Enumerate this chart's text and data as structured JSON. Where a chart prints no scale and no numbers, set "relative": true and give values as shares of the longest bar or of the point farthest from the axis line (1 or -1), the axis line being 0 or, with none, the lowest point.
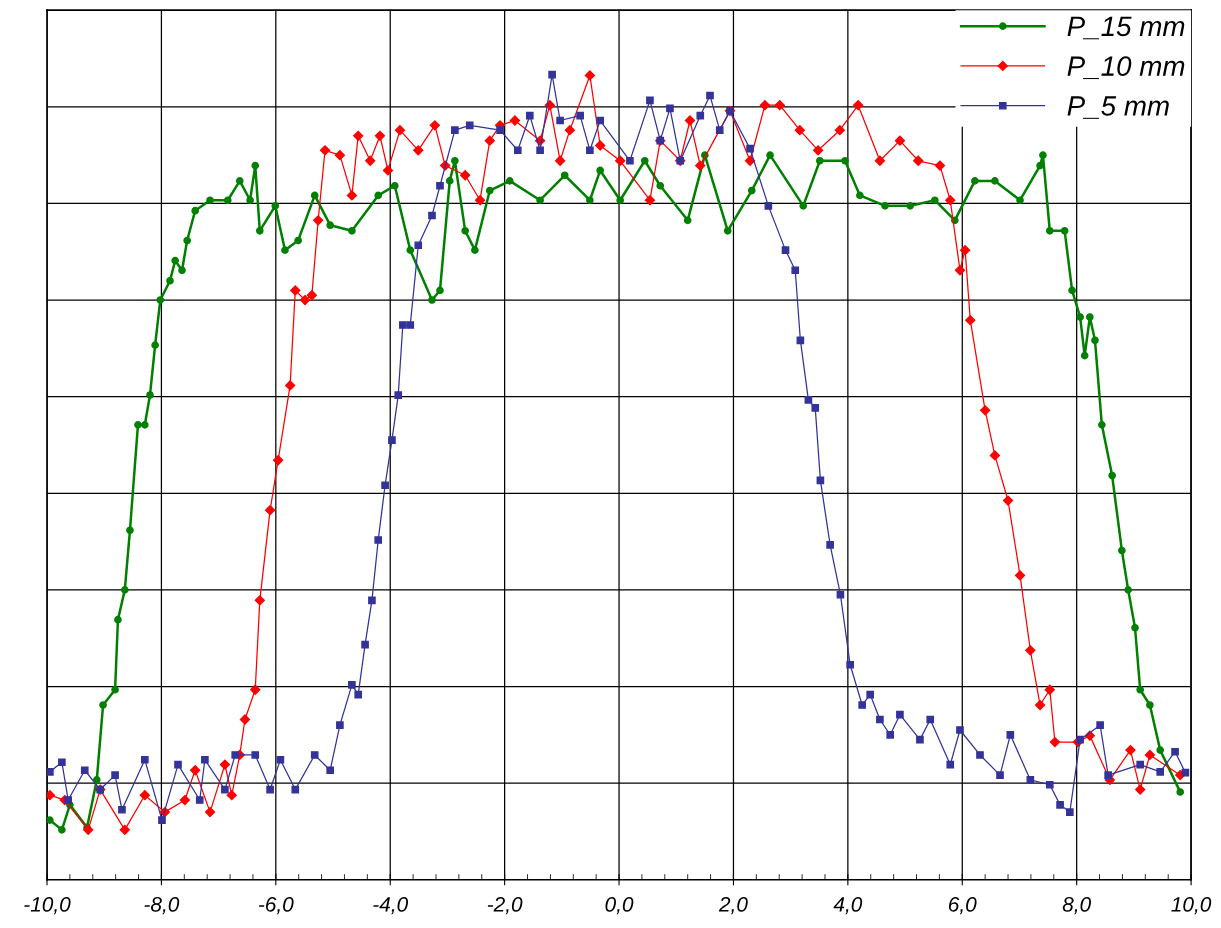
{
  "chart_data": {
    "type": "line",
    "relative": true,
    "xlim": [
      -10,
      10
    ],
    "xticks": [
      {
        "value": -10,
        "label": "-10,0"
      },
      {
        "value": -8,
        "label": "-8,0"
      },
      {
        "value": -6,
        "label": "-6,0"
      },
      {
        "value": -4,
        "label": "-4,0"
      },
      {
        "value": -2,
        "label": "-2,0"
      },
      {
        "value": 0,
        "label": "0,0"
      },
      {
        "value": 2,
        "label": "2,0"
      },
      {
        "value": 4,
        "label": "4,0"
      },
      {
        "value": 6,
        "label": "6,0"
      },
      {
        "value": 8,
        "label": "8,0"
      },
      {
        "value": 10,
        "label": "10,0"
      }
    ],
    "tick_labels": "x",
    "grid": true,
    "legend": "top right",
    "line_style": "solid",
    "series": [
      {
        "name": "P_15 mm",
        "color": "#008000",
        "marker": "circle",
        "x": [
          -9.95,
          -9.74,
          -9.6,
          -9.3,
          -9.13,
          -9.02,
          -8.81,
          -8.76,
          -8.64,
          -8.55,
          -8.41,
          -8.29,
          -8.2,
          -8.11,
          -8.02,
          -7.85,
          -7.76,
          -7.64,
          -7.55,
          -7.41,
          -7.15,
          -6.84,
          -6.63,
          -6.45,
          -6.36,
          -6.28,
          -6.01,
          -5.84,
          -5.61,
          -5.32,
          -5.05,
          -4.67,
          -4.21,
          -3.92,
          -3.65,
          -3.27,
          -3.13,
          -2.96,
          -2.87,
          -2.69,
          -2.52,
          -2.26,
          -1.91,
          -1.38,
          -0.95,
          -0.51,
          -0.33,
          0.02,
          0.45,
          0.72,
          1.2,
          1.5,
          1.9,
          2.32,
          2.64,
          3.22,
          3.51,
          3.95,
          4.21,
          4.65,
          5.09,
          5.52,
          5.87,
          6.22,
          6.57,
          7.01,
          7.36,
          7.41,
          7.53,
          7.79,
          7.92,
          8.06,
          8.14,
          8.23,
          8.32,
          8.44,
          8.62,
          8.79,
          8.9,
          9.02,
          9.11,
          9.28,
          9.46,
          9.81
        ],
        "values": [
          0.074,
          0.062,
          0.093,
          0.065,
          0.124,
          0.217,
          0.236,
          0.323,
          0.36,
          0.434,
          0.565,
          0.565,
          0.602,
          0.664,
          0.72,
          0.744,
          0.769,
          0.757,
          0.794,
          0.831,
          0.844,
          0.844,
          0.868,
          0.844,
          0.887,
          0.806,
          0.837,
          0.782,
          0.794,
          0.85,
          0.813,
          0.806,
          0.85,
          0.862,
          0.782,
          0.72,
          0.732,
          0.868,
          0.893,
          0.806,
          0.782,
          0.856,
          0.868,
          0.844,
          0.875,
          0.844,
          0.881,
          0.844,
          0.893,
          0.862,
          0.819,
          0.9,
          0.806,
          0.856,
          0.9,
          0.837,
          0.893,
          0.893,
          0.85,
          0.837,
          0.837,
          0.844,
          0.819,
          0.868,
          0.868,
          0.844,
          0.887,
          0.9,
          0.806,
          0.806,
          0.732,
          0.699,
          0.651,
          0.699,
          0.67,
          0.565,
          0.502,
          0.409,
          0.36,
          0.313,
          0.236,
          0.217,
          0.161,
          0.109
        ]
      },
      {
        "name": "P_10 mm",
        "color": "#ff0000",
        "marker": "diamond",
        "x": [
          -9.95,
          -9.69,
          -9.28,
          -9.07,
          -8.64,
          -8.29,
          -7.94,
          -7.59,
          -7.41,
          -7.15,
          -6.89,
          -6.77,
          -6.63,
          -6.54,
          -6.36,
          -6.28,
          -6.1,
          -5.96,
          -5.75,
          -5.66,
          -5.49,
          -5.37,
          -5.26,
          -5.14,
          -4.88,
          -4.67,
          -4.56,
          -4.35,
          -4.18,
          -4.04,
          -3.83,
          -3.51,
          -3.22,
          -3.04,
          -2.69,
          -2.43,
          -2.26,
          -2.08,
          -1.82,
          -1.38,
          -1.21,
          -1.03,
          -0.86,
          -0.51,
          -0.33,
          0.02,
          0.54,
          0.72,
          1.07,
          1.24,
          1.42,
          1.94,
          2.29,
          2.55,
          2.81,
          3.16,
          3.48,
          3.86,
          4.18,
          4.56,
          4.91,
          5.23,
          5.61,
          5.79,
          5.96,
          6.05,
          6.14,
          6.4,
          6.57,
          6.8,
          7.01,
          7.19,
          7.36,
          7.53,
          7.62,
          8.02,
          8.23,
          8.58,
          8.94,
          9.11,
          9.28,
          9.81
        ],
        "values": [
          0.105,
          0.099,
          0.062,
          0.112,
          0.062,
          0.105,
          0.084,
          0.099,
          0.136,
          0.084,
          0.143,
          0.105,
          0.155,
          0.199,
          0.236,
          0.347,
          0.459,
          0.521,
          0.614,
          0.732,
          0.72,
          0.726,
          0.819,
          0.906,
          0.9,
          0.85,
          0.924,
          0.893,
          0.924,
          0.881,
          0.931,
          0.906,
          0.937,
          0.887,
          0.875,
          0.844,
          0.918,
          0.937,
          0.943,
          0.918,
          0.962,
          0.893,
          0.931,
          0.999,
          0.912,
          0.893,
          0.844,
          0.918,
          0.893,
          0.943,
          0.887,
          0.955,
          0.893,
          0.962,
          0.962,
          0.931,
          0.906,
          0.931,
          0.962,
          0.893,
          0.918,
          0.893,
          0.887,
          0.844,
          0.757,
          0.782,
          0.695,
          0.583,
          0.527,
          0.471,
          0.378,
          0.285,
          0.217,
          0.236,
          0.171,
          0.171,
          0.179,
          0.124,
          0.161,
          0.112,
          0.155,
          0.13
        ]
      },
      {
        "name": "P_5 mm",
        "color": "#333399",
        "marker": "square",
        "x": [
          -9.95,
          -9.74,
          -9.63,
          -9.34,
          -9.07,
          -8.81,
          -8.69,
          -8.29,
          -7.99,
          -7.71,
          -7.33,
          -7.24,
          -6.89,
          -6.71,
          -6.36,
          -6.1,
          -5.92,
          -5.66,
          -5.32,
          -5.05,
          -4.88,
          -4.67,
          -4.56,
          -4.44,
          -4.32,
          -4.21,
          -4.09,
          -3.97,
          -3.86,
          -3.78,
          -3.65,
          -3.51,
          -3.27,
          -3.13,
          -2.87,
          -2.61,
          -2.08,
          -1.77,
          -1.56,
          -1.38,
          -1.17,
          -1.03,
          -0.68,
          -0.51,
          -0.33,
          0.19,
          0.54,
          0.72,
          0.89,
          1.07,
          1.42,
          1.59,
          1.76,
          1.94,
          2.29,
          2.61,
          2.91,
          3.08,
          3.17,
          3.31,
          3.43,
          3.52,
          3.69,
          3.87,
          4.04,
          4.25,
          4.39,
          4.56,
          4.74,
          4.91,
          5.26,
          5.44,
          5.79,
          5.96,
          6.31,
          6.66,
          6.84,
          7.19,
          7.53,
          7.71,
          7.88,
          8.06,
          8.41,
          8.55,
          9.11,
          9.46,
          9.72,
          9.9
        ],
        "values": [
          0.134,
          0.146,
          0.099,
          0.136,
          0.112,
          0.13,
          0.087,
          0.149,
          0.074,
          0.143,
          0.099,
          0.149,
          0.112,
          0.155,
          0.155,
          0.112,
          0.149,
          0.112,
          0.155,
          0.136,
          0.192,
          0.242,
          0.23,
          0.292,
          0.347,
          0.422,
          0.49,
          0.546,
          0.602,
          0.689,
          0.689,
          0.788,
          0.825,
          0.862,
          0.931,
          0.937,
          0.931,
          0.906,
          0.949,
          0.906,
          1.0,
          0.943,
          0.949,
          0.906,
          0.943,
          0.893,
          0.968,
          0.918,
          0.958,
          0.893,
          0.949,
          0.974,
          0.931,
          0.955,
          0.908,
          0.837,
          0.782,
          0.757,
          0.67,
          0.596,
          0.586,
          0.496,
          0.416,
          0.354,
          0.267,
          0.217,
          0.23,
          0.199,
          0.18,
          0.205,
          0.174,
          0.199,
          0.143,
          0.186,
          0.155,
          0.13,
          0.18,
          0.124,
          0.118,
          0.093,
          0.084,
          0.174,
          0.192,
          0.13,
          0.143,
          0.134,
          0.159,
          0.133
        ]
      }
    ]
  }
}
